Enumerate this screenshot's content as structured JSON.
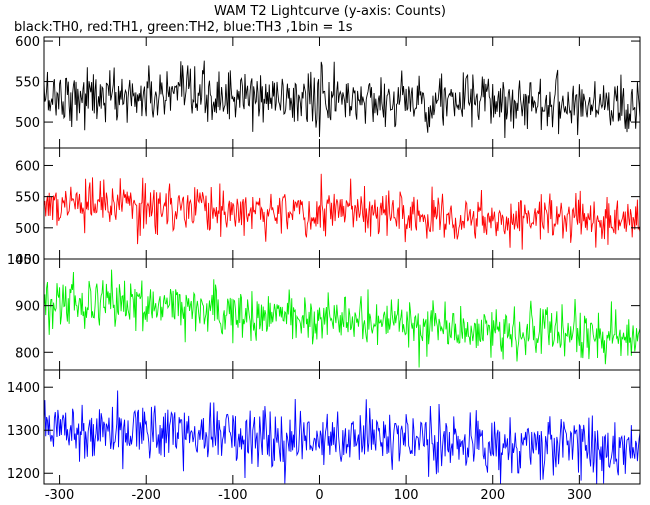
{
  "title": "WAM T2 Lightcurve (y-axis: Counts)",
  "subtitle": "black:TH0, red:TH1, green:TH2, blue:TH3 ,1bin = 1s",
  "chart_data": {
    "type": "line",
    "title": "WAM T2 Lightcurve (y-axis: Counts)",
    "subtitle": "black:TH0, red:TH1, green:TH2, blue:TH3 ,1bin = 1s",
    "xlim": [
      -318,
      370
    ],
    "x_ticks": [
      -300,
      -200,
      -100,
      0,
      100,
      200,
      300
    ],
    "bin_seconds": 1,
    "grid": false,
    "panels": [
      {
        "series": "TH0",
        "color": "#000000",
        "ylim": [
          468,
          605
        ],
        "y_ticks": [
          500,
          550,
          600
        ],
        "trend": {
          "x": [
            -318,
            370
          ],
          "y": [
            533,
            523
          ]
        },
        "noise_sigma": 17
      },
      {
        "series": "TH1",
        "color": "#ff0000",
        "ylim": [
          450,
          628
        ],
        "y_ticks": [
          450,
          500,
          550,
          600
        ],
        "trend": {
          "x": [
            -318,
            370
          ],
          "y": [
            537,
            512
          ]
        },
        "noise_sigma": 19
      },
      {
        "series": "TH2",
        "color": "#00ee00",
        "ylim": [
          762,
          1000
        ],
        "y_ticks": [
          800,
          900,
          1000
        ],
        "trend": {
          "x": [
            -318,
            370
          ],
          "y": [
            915,
            825
          ]
        },
        "noise_sigma": 27
      },
      {
        "series": "TH3",
        "color": "#0000ff",
        "ylim": [
          1175,
          1440
        ],
        "y_ticks": [
          1200,
          1300,
          1400
        ],
        "trend": {
          "x": [
            -318,
            370
          ],
          "y": [
            1310,
            1255
          ]
        },
        "noise_sigma": 35
      }
    ]
  }
}
